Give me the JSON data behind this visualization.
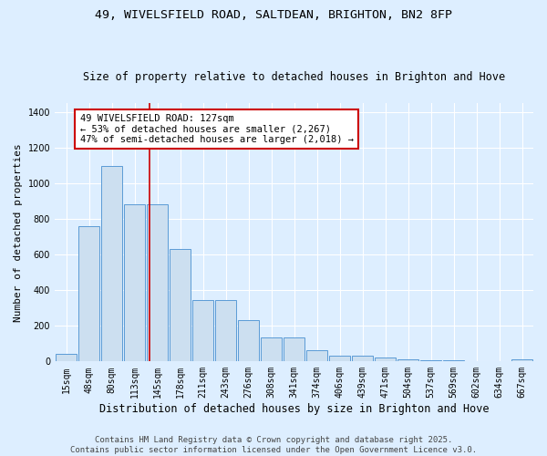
{
  "title1": "49, WIVELSFIELD ROAD, SALTDEAN, BRIGHTON, BN2 8FP",
  "title2": "Size of property relative to detached houses in Brighton and Hove",
  "xlabel": "Distribution of detached houses by size in Brighton and Hove",
  "ylabel": "Number of detached properties",
  "categories": [
    "15sqm",
    "48sqm",
    "80sqm",
    "113sqm",
    "145sqm",
    "178sqm",
    "211sqm",
    "243sqm",
    "276sqm",
    "308sqm",
    "341sqm",
    "374sqm",
    "406sqm",
    "439sqm",
    "471sqm",
    "504sqm",
    "537sqm",
    "569sqm",
    "602sqm",
    "634sqm",
    "667sqm"
  ],
  "values": [
    45,
    760,
    1095,
    880,
    880,
    630,
    345,
    345,
    230,
    135,
    135,
    65,
    30,
    30,
    20,
    10,
    5,
    5,
    0,
    2,
    10
  ],
  "bar_color": "#ccdff0",
  "bar_edge_color": "#5b9bd5",
  "bg_color": "#ddeeff",
  "grid_color": "#ffffff",
  "vline_x": 3.65,
  "vline_color": "#cc0000",
  "annotation_text": "49 WIVELSFIELD ROAD: 127sqm\n← 53% of detached houses are smaller (2,267)\n47% of semi-detached houses are larger (2,018) →",
  "annotation_box_color": "#ffffff",
  "annotation_box_edge": "#cc0000",
  "footnote": "Contains HM Land Registry data © Crown copyright and database right 2025.\nContains public sector information licensed under the Open Government Licence v3.0.",
  "ylim": [
    0,
    1450
  ],
  "title1_fontsize": 9.5,
  "title2_fontsize": 8.5,
  "xlabel_fontsize": 8.5,
  "ylabel_fontsize": 8,
  "tick_fontsize": 7,
  "annotation_fontsize": 7.5,
  "footnote_fontsize": 6.5
}
